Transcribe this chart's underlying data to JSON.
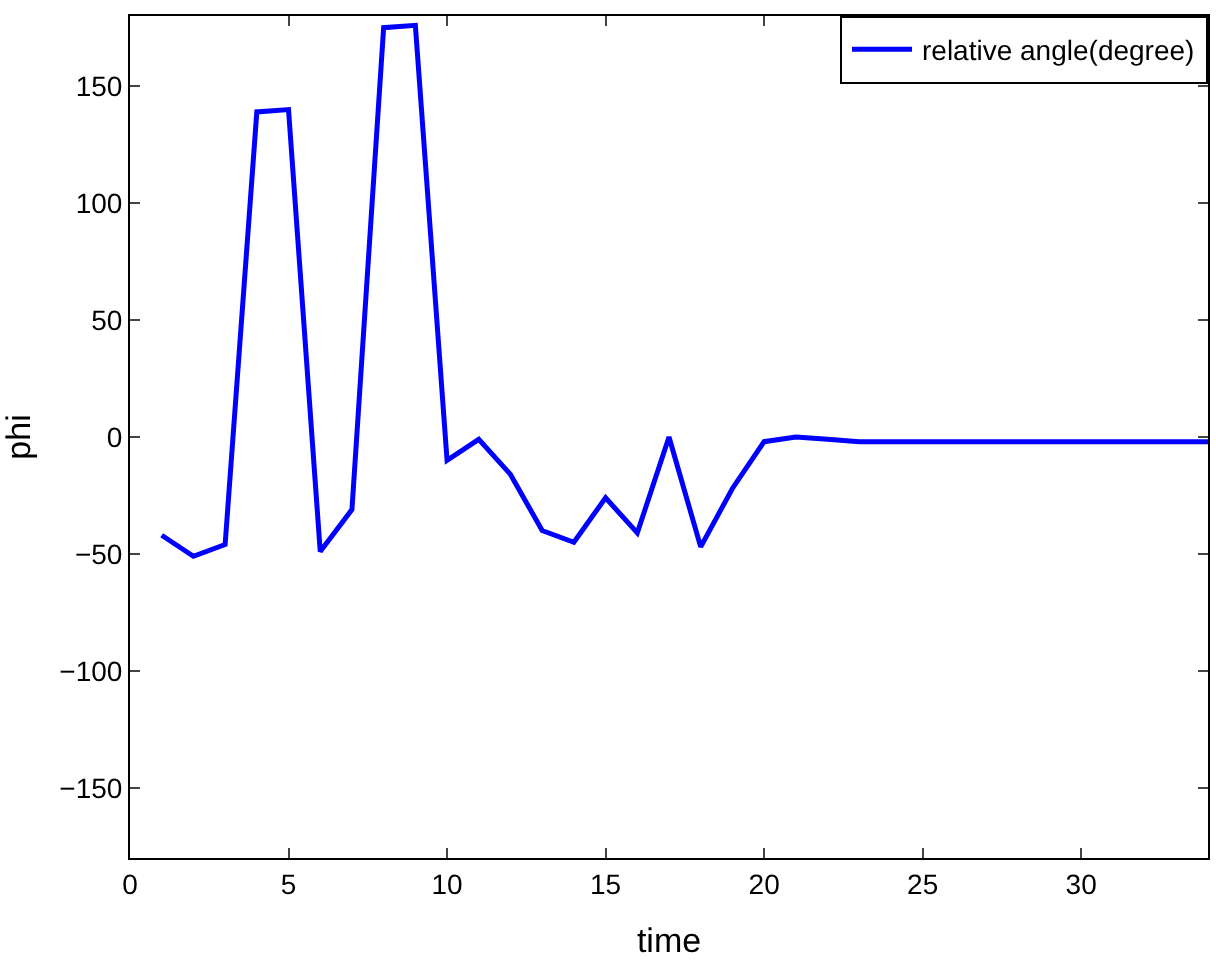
{
  "chart_data": {
    "type": "line",
    "xlabel": "time",
    "ylabel": "phi",
    "x": [
      1,
      2,
      3,
      4,
      5,
      6,
      7,
      8,
      9,
      10,
      11,
      12,
      13,
      14,
      15,
      16,
      17,
      18,
      19,
      20,
      21,
      22,
      23,
      24,
      25,
      26,
      27,
      28,
      29,
      30,
      31,
      32,
      33,
      34
    ],
    "series": [
      {
        "name": "relative angle(degree)",
        "color": "#0000ff",
        "values": [
          -42,
          -51,
          -46,
          139,
          140,
          -49,
          -31,
          175,
          176,
          -10,
          -1,
          -16,
          -40,
          -45,
          -26,
          -41,
          0,
          -47,
          -22,
          -2,
          0,
          -1,
          -2,
          -2,
          -2,
          -2,
          -2,
          -2,
          -2,
          -2,
          -2,
          -2,
          -2,
          -2
        ]
      }
    ],
    "xlim": [
      0,
      34
    ],
    "xticks": [
      0,
      5,
      10,
      15,
      20,
      25,
      30
    ],
    "ylim": [
      -180,
      180
    ],
    "yticks": [
      -150,
      -100,
      -50,
      0,
      50,
      100,
      150
    ],
    "legend": "top right",
    "marker": "none",
    "line_style": "solid"
  }
}
